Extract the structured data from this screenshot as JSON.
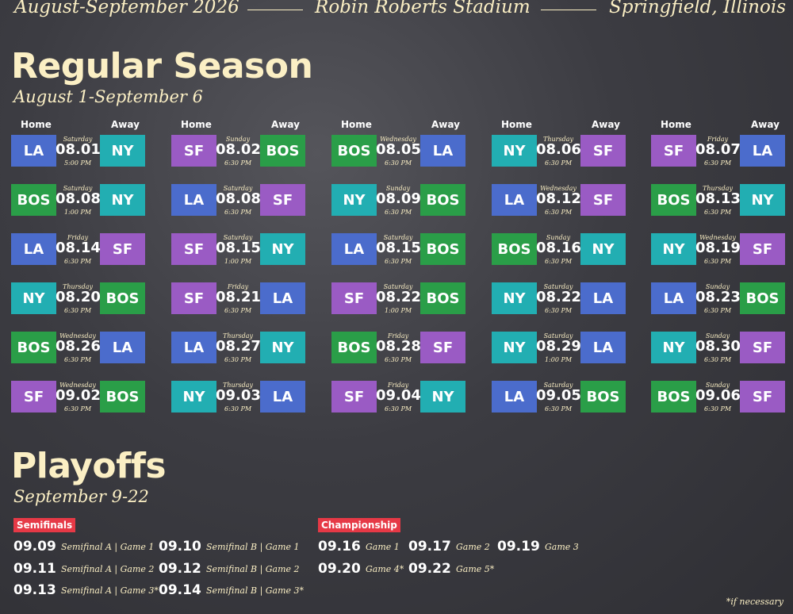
{
  "header": {
    "dates": "August-September 2026",
    "venue": "Robin Roberts Stadium",
    "city": "Springfield, Illinois"
  },
  "regular_season": {
    "title": "Regular Season",
    "subtitle": "August 1-September 6",
    "column_headers": [
      "Home",
      "Away"
    ],
    "team_colors": {
      "LA": "#4b6ccc",
      "NY": "#22aeb2",
      "SF": "#9a5bc4",
      "BOS": "#2a9e48"
    },
    "games": [
      {
        "home": "LA",
        "away": "NY",
        "day": "Saturday",
        "date": "08.01",
        "time": "5:00 PM"
      },
      {
        "home": "SF",
        "away": "BOS",
        "day": "Sunday",
        "date": "08.02",
        "time": "6:30 PM"
      },
      {
        "home": "BOS",
        "away": "LA",
        "day": "Wednesday",
        "date": "08.05",
        "time": "6:30 PM"
      },
      {
        "home": "NY",
        "away": "SF",
        "day": "Thursday",
        "date": "08.06",
        "time": "6:30 PM"
      },
      {
        "home": "SF",
        "away": "LA",
        "day": "Friday",
        "date": "08.07",
        "time": "6:30 PM"
      },
      {
        "home": "BOS",
        "away": "NY",
        "day": "Saturday",
        "date": "08.08",
        "time": "1:00 PM"
      },
      {
        "home": "LA",
        "away": "SF",
        "day": "Saturday",
        "date": "08.08",
        "time": "6:30 PM"
      },
      {
        "home": "NY",
        "away": "BOS",
        "day": "Sunday",
        "date": "08.09",
        "time": "6:30 PM"
      },
      {
        "home": "LA",
        "away": "SF",
        "day": "Wednesday",
        "date": "08.12",
        "time": "6:30 PM"
      },
      {
        "home": "BOS",
        "away": "NY",
        "day": "Thursday",
        "date": "08.13",
        "time": "6:30 PM"
      },
      {
        "home": "LA",
        "away": "SF",
        "day": "Friday",
        "date": "08.14",
        "time": "6:30 PM"
      },
      {
        "home": "SF",
        "away": "NY",
        "day": "Saturday",
        "date": "08.15",
        "time": "1:00 PM"
      },
      {
        "home": "LA",
        "away": "BOS",
        "day": "Saturday",
        "date": "08.15",
        "time": "6:30 PM"
      },
      {
        "home": "BOS",
        "away": "NY",
        "day": "Sunday",
        "date": "08.16",
        "time": "6:30 PM"
      },
      {
        "home": "NY",
        "away": "SF",
        "day": "Wednesday",
        "date": "08.19",
        "time": "6:30 PM"
      },
      {
        "home": "NY",
        "away": "BOS",
        "day": "Thursday",
        "date": "08.20",
        "time": "6:30 PM"
      },
      {
        "home": "SF",
        "away": "LA",
        "day": "Friday",
        "date": "08.21",
        "time": "6:30 PM"
      },
      {
        "home": "SF",
        "away": "BOS",
        "day": "Saturday",
        "date": "08.22",
        "time": "1:00 PM"
      },
      {
        "home": "NY",
        "away": "LA",
        "day": "Saturday",
        "date": "08.22",
        "time": "6:30 PM"
      },
      {
        "home": "LA",
        "away": "BOS",
        "day": "Sunday",
        "date": "08.23",
        "time": "6:30 PM"
      },
      {
        "home": "BOS",
        "away": "LA",
        "day": "Wednesday",
        "date": "08.26",
        "time": "6:30 PM"
      },
      {
        "home": "LA",
        "away": "NY",
        "day": "Thursday",
        "date": "08.27",
        "time": "6:30 PM"
      },
      {
        "home": "BOS",
        "away": "SF",
        "day": "Friday",
        "date": "08.28",
        "time": "6:30 PM"
      },
      {
        "home": "NY",
        "away": "LA",
        "day": "Saturday",
        "date": "08.29",
        "time": "1:00 PM"
      },
      {
        "home": "NY",
        "away": "SF",
        "day": "Sunday",
        "date": "08.30",
        "time": "6:30 PM"
      },
      {
        "home": "SF",
        "away": "BOS",
        "day": "Wednesday",
        "date": "09.02",
        "time": "6:30 PM"
      },
      {
        "home": "NY",
        "away": "LA",
        "day": "Thursday",
        "date": "09.03",
        "time": "6:30 PM"
      },
      {
        "home": "SF",
        "away": "NY",
        "day": "Friday",
        "date": "09.04",
        "time": "6:30 PM"
      },
      {
        "home": "LA",
        "away": "BOS",
        "day": "Saturday",
        "date": "09.05",
        "time": "6:30 PM"
      },
      {
        "home": "BOS",
        "away": "SF",
        "day": "Sunday",
        "date": "09.06",
        "time": "6:30 PM"
      }
    ]
  },
  "playoffs": {
    "title": "Playoffs",
    "subtitle": "September 9-22",
    "semifinals": {
      "label": "Semifinals",
      "games": [
        {
          "date": "09.09",
          "label": "Semifinal A | Game 1"
        },
        {
          "date": "09.10",
          "label": "Semifinal B | Game 1"
        },
        {
          "date": "09.11",
          "label": "Semifinal A | Game 2"
        },
        {
          "date": "09.12",
          "label": "Semifinal B | Game 2"
        },
        {
          "date": "09.13",
          "label": "Semifinal A | Game 3*"
        },
        {
          "date": "09.14",
          "label": "Semifinal B | Game 3*"
        }
      ]
    },
    "championship": {
      "label": "Championship",
      "games": [
        {
          "date": "09.16",
          "label": "Game 1"
        },
        {
          "date": "09.17",
          "label": "Game 2"
        },
        {
          "date": "09.19",
          "label": "Game 3"
        },
        {
          "date": "09.20",
          "label": "Game 4*"
        },
        {
          "date": "09.22",
          "label": "Game 5*"
        }
      ]
    },
    "footnote": "*if necessary"
  }
}
